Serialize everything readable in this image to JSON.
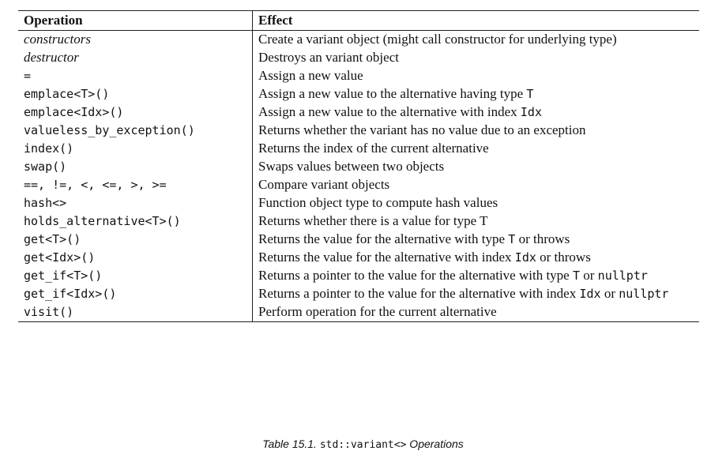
{
  "table": {
    "header": {
      "operation": "Operation",
      "effect": "Effect"
    },
    "rows": [
      {
        "op": "constructors",
        "op_style": "italic",
        "effect": [
          "Create a variant object (might call constructor for underlying type)"
        ]
      },
      {
        "op": "destructor",
        "op_style": "italic",
        "effect": [
          "Destroys an variant object"
        ]
      },
      {
        "op": "=",
        "op_style": "code",
        "effect": [
          "Assign a new value"
        ]
      },
      {
        "op": "emplace<T>()",
        "op_style": "code",
        "effect": [
          "Assign a new value to the alternative having type ",
          {
            "code": "T"
          }
        ]
      },
      {
        "op": "emplace<Idx>()",
        "op_style": "code",
        "effect": [
          "Assign a new value to the alternative with index ",
          {
            "code": "Idx"
          }
        ]
      },
      {
        "op": "valueless_by_exception()",
        "op_style": "code",
        "effect": [
          "Returns whether the variant has no value due to an exception"
        ]
      },
      {
        "op": "index()",
        "op_style": "code",
        "effect": [
          "Returns the index of the current alternative"
        ]
      },
      {
        "op": "swap()",
        "op_style": "code",
        "effect": [
          "Swaps values between two objects"
        ]
      },
      {
        "op": "==, !=, <, <=, >, >=",
        "op_style": "code",
        "effect": [
          "Compare variant objects"
        ]
      },
      {
        "op": "hash<>",
        "op_style": "code",
        "effect": [
          "Function object type to compute hash values"
        ]
      },
      {
        "op": "holds_alternative<T>()",
        "op_style": "code",
        "effect": [
          "Returns whether there is a value for type T"
        ]
      },
      {
        "op": "get<T>()",
        "op_style": "code",
        "effect": [
          "Returns the value for the alternative with type ",
          {
            "code": "T"
          },
          " or throws"
        ]
      },
      {
        "op": "get<Idx>()",
        "op_style": "code",
        "effect": [
          "Returns the value for the alternative with index ",
          {
            "code": "Idx"
          },
          " or throws"
        ]
      },
      {
        "op": "get_if<T>()",
        "op_style": "code",
        "effect": [
          "Returns a pointer to the value for the alternative with type ",
          {
            "code": "T"
          },
          " or ",
          {
            "code": "nullptr"
          }
        ]
      },
      {
        "op": "get_if<Idx>()",
        "op_style": "code",
        "effect": [
          "Returns a pointer to the value for the alternative with index ",
          {
            "code": "Idx"
          },
          " or ",
          {
            "code": "nullptr"
          }
        ]
      },
      {
        "op": "visit()",
        "op_style": "code",
        "effect": [
          "Perform operation for the current alternative"
        ]
      }
    ]
  },
  "caption": {
    "prefix": "Table 15.1. ",
    "code": "std::variant<>",
    "suffix": " Operations"
  }
}
